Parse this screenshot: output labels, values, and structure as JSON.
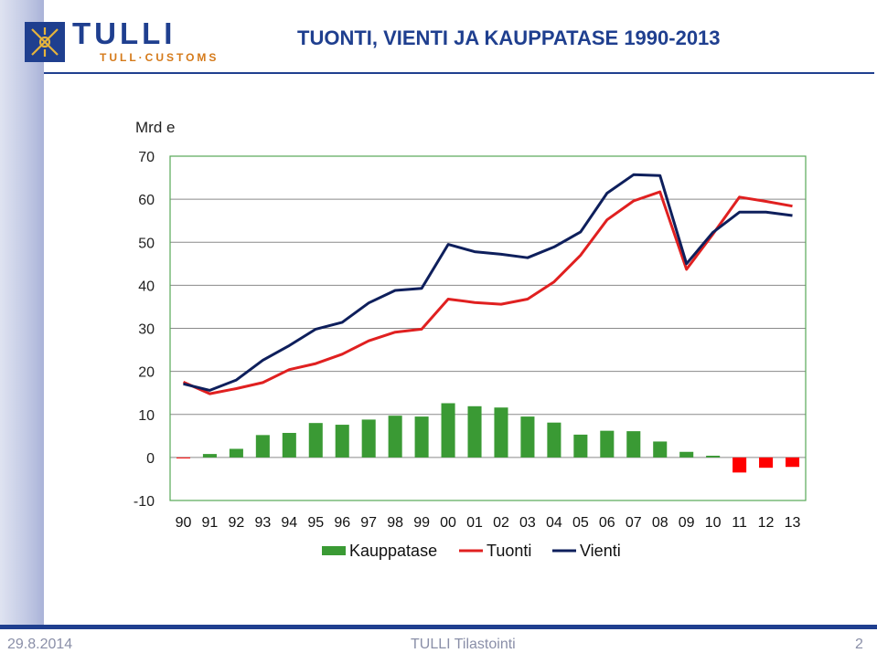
{
  "header": {
    "logo_text": "TULLI",
    "logo_sub": "TULL·CUSTOMS",
    "title": "TUONTI, VIENTI JA KAUPPATASE 1990-2013"
  },
  "footer": {
    "date": "29.8.2014",
    "center": "TULLI Tilastointi",
    "page": "2"
  },
  "colors": {
    "brand_blue": "#1f3f8f",
    "kauppatase_positive": "#3a9a34",
    "kauppatase_negative": "#ff0000",
    "tuonti": "#e02020",
    "vienti": "#0e1f5c"
  },
  "chart_data": {
    "type": "line",
    "title": "TUONTI, VIENTI JA KAUPPATASE 1990-2013",
    "ylabel": "Mrd e",
    "ylim": [
      -10,
      70
    ],
    "yticks": [
      -10,
      0,
      10,
      20,
      30,
      40,
      50,
      60,
      70
    ],
    "grid": true,
    "legend_position": "bottom",
    "categories": [
      "90",
      "91",
      "92",
      "93",
      "94",
      "95",
      "96",
      "97",
      "98",
      "99",
      "00",
      "01",
      "02",
      "03",
      "04",
      "05",
      "06",
      "07",
      "08",
      "09",
      "10",
      "11",
      "12",
      "13"
    ],
    "series": [
      {
        "name": "Kauppatase",
        "kind": "bar",
        "values": [
          -0.2,
          0.8,
          2.0,
          5.2,
          5.7,
          8.0,
          7.6,
          8.8,
          9.7,
          9.5,
          12.6,
          11.9,
          11.6,
          9.5,
          8.1,
          5.3,
          6.2,
          6.1,
          3.7,
          1.3,
          0.4,
          -3.5,
          -2.4,
          -2.2
        ]
      },
      {
        "name": "Tuonti",
        "kind": "line",
        "values": [
          17.5,
          14.8,
          16.0,
          17.4,
          20.4,
          21.8,
          24.0,
          27.1,
          29.1,
          29.8,
          36.8,
          36.0,
          35.6,
          36.8,
          40.8,
          47.0,
          55.2,
          59.6,
          61.7,
          43.7,
          51.9,
          60.5,
          59.5,
          58.4
        ]
      },
      {
        "name": "Vienti",
        "kind": "line",
        "values": [
          17.1,
          15.6,
          18.0,
          22.6,
          26.0,
          29.8,
          31.4,
          35.9,
          38.8,
          39.3,
          49.5,
          47.8,
          47.2,
          46.4,
          48.9,
          52.4,
          61.4,
          65.7,
          65.5,
          45.0,
          52.3,
          57.0,
          57.0,
          56.2
        ]
      }
    ]
  }
}
